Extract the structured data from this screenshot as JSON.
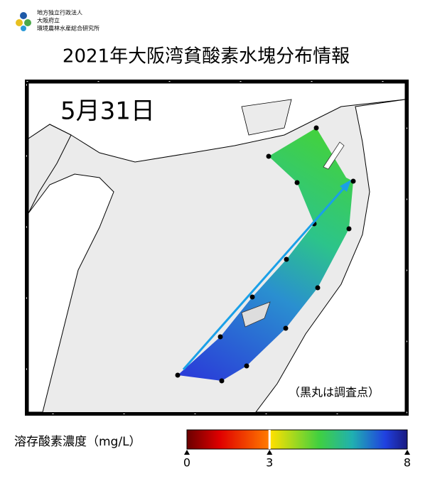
{
  "header": {
    "org_lines": [
      "地方独立行政法人",
      "大阪府立",
      "環境農林水産総合研究所"
    ],
    "title": "2021年大阪湾貧酸素水塊分布情報"
  },
  "map": {
    "date": "5月31日",
    "note": "（黒丸は調査点）"
  },
  "colorbar": {
    "label": "溶存酸素濃度（mg/L）",
    "range": [
      0,
      8
    ],
    "ticks": [
      0,
      3,
      8
    ]
  }
}
